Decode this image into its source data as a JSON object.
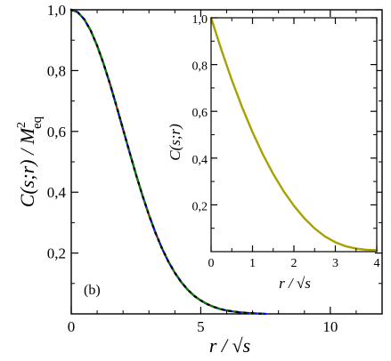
{
  "figure": {
    "panel_label": "(b)"
  },
  "chart_data": [
    {
      "type": "line",
      "xlabel": "r / √s",
      "ylabel": "C(s;r) / M",
      "ylabel_sup": "2",
      "ylabel_sub": "eq",
      "xlim": [
        0,
        12
      ],
      "ylim": [
        0,
        1.0
      ],
      "xticks": [
        0,
        5,
        10
      ],
      "xtick_labels": [
        "0",
        "5",
        "10"
      ],
      "yticks": [
        0.2,
        0.4,
        0.6,
        0.8,
        1.0
      ],
      "ytick_labels": [
        "0,2",
        "0,4",
        "0,6",
        "0,8",
        "1,0"
      ],
      "grid": false,
      "x": [
        0,
        0.25,
        0.5,
        0.75,
        1,
        1.25,
        1.5,
        1.75,
        2,
        2.25,
        2.5,
        2.75,
        3,
        3.25,
        3.5,
        3.75,
        4,
        4.25,
        4.5,
        4.75,
        5,
        5.25,
        5.5,
        5.75,
        6,
        6.5,
        7,
        7.5
      ],
      "series": [
        {
          "color": "#ff0000",
          "dash": "solid",
          "width": 2.2,
          "values": [
            1.0,
            0.992,
            0.969,
            0.932,
            0.882,
            0.822,
            0.755,
            0.682,
            0.607,
            0.532,
            0.458,
            0.389,
            0.325,
            0.267,
            0.216,
            0.172,
            0.135,
            0.104,
            0.079,
            0.059,
            0.044,
            0.032,
            0.023,
            0.016,
            0.011,
            0.005,
            0.002,
            0.0
          ]
        },
        {
          "color": "#0000ff",
          "dash": "10 4",
          "width": 2.2,
          "values": [
            1.0,
            0.992,
            0.969,
            0.932,
            0.882,
            0.822,
            0.755,
            0.682,
            0.607,
            0.532,
            0.458,
            0.389,
            0.325,
            0.267,
            0.216,
            0.172,
            0.135,
            0.104,
            0.079,
            0.059,
            0.044,
            0.032,
            0.023,
            0.016,
            0.011,
            0.005,
            0.002,
            0.0
          ]
        },
        {
          "color": "#008000",
          "dash": "4 5",
          "width": 2.4,
          "values": [
            1.0,
            0.992,
            0.969,
            0.932,
            0.882,
            0.822,
            0.755,
            0.682,
            0.607,
            0.532,
            0.458,
            0.389,
            0.325,
            0.267,
            0.216,
            0.172,
            0.135,
            0.104,
            0.079,
            0.059,
            0.044,
            0.032,
            0.023,
            0.016,
            0.011,
            0.005,
            0.002,
            0.0
          ]
        },
        {
          "color": "#000000",
          "dash": "1.5 7",
          "width": 2.4,
          "values": [
            1.0,
            0.992,
            0.969,
            0.932,
            0.882,
            0.822,
            0.755,
            0.682,
            0.607,
            0.532,
            0.458,
            0.389,
            0.325,
            0.267,
            0.216,
            0.172,
            0.135,
            0.104,
            0.079,
            0.059,
            0.044,
            0.032,
            0.023,
            0.016,
            0.011,
            0.005,
            0.002,
            0.0
          ]
        }
      ]
    },
    {
      "type": "line",
      "inset": true,
      "xlabel": "r / √s",
      "ylabel": "C(s;r)",
      "xlim": [
        0,
        4
      ],
      "ylim": [
        0,
        1.0
      ],
      "xticks": [
        0,
        1,
        2,
        3,
        4
      ],
      "xtick_labels": [
        "0",
        "1",
        "2",
        "3",
        "4"
      ],
      "yticks": [
        0.2,
        0.4,
        0.6,
        0.8,
        1.0
      ],
      "ytick_labels": [
        "0,2",
        "0,4",
        "0,6",
        "0,8",
        "1,0"
      ],
      "grid": false,
      "x": [
        0,
        0.25,
        0.5,
        0.75,
        1,
        1.25,
        1.5,
        1.75,
        2,
        2.25,
        2.5,
        2.75,
        3,
        3.25,
        3.5,
        3.75,
        4
      ],
      "series": [
        {
          "color": "#a8a100",
          "dash": "solid",
          "width": 2.4,
          "values": [
            1.0,
            0.862,
            0.734,
            0.617,
            0.511,
            0.416,
            0.332,
            0.259,
            0.196,
            0.143,
            0.099,
            0.065,
            0.04,
            0.023,
            0.013,
            0.008,
            0.006
          ]
        }
      ]
    }
  ]
}
